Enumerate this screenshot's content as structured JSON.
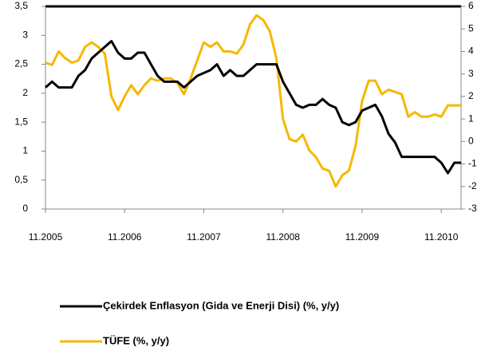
{
  "chart_data": {
    "type": "line",
    "categories": [
      "11.2005",
      null,
      null,
      null,
      null,
      null,
      null,
      null,
      null,
      null,
      null,
      null,
      "11.2006",
      null,
      null,
      null,
      null,
      null,
      null,
      null,
      null,
      null,
      null,
      null,
      "11.2007",
      null,
      null,
      null,
      null,
      null,
      null,
      null,
      null,
      null,
      null,
      null,
      "11.2008",
      null,
      null,
      null,
      null,
      null,
      null,
      null,
      null,
      null,
      null,
      null,
      "11.2009",
      null,
      null,
      null,
      null,
      null,
      null,
      null,
      null,
      null,
      null,
      null,
      "11.2010",
      null,
      null,
      null
    ],
    "series": [
      {
        "name": "Çekirdek Enflasyon (Gida ve Enerji Disi) (%, y/y)",
        "color": "#000000",
        "axis": "y",
        "values": [
          2.1,
          2.2,
          2.1,
          2.1,
          2.1,
          2.3,
          2.4,
          2.6,
          2.7,
          2.8,
          2.9,
          2.7,
          2.6,
          2.6,
          2.7,
          2.7,
          2.5,
          2.3,
          2.2,
          2.2,
          2.2,
          2.1,
          2.2,
          2.3,
          2.35,
          2.4,
          2.5,
          2.3,
          2.4,
          2.3,
          2.3,
          2.4,
          2.5,
          2.5,
          2.5,
          2.5,
          2.2,
          2.0,
          1.8,
          1.75,
          1.8,
          1.8,
          1.9,
          1.8,
          1.75,
          1.5,
          1.45,
          1.5,
          1.7,
          1.75,
          1.8,
          1.6,
          1.3,
          1.15,
          0.9,
          0.9,
          0.9,
          0.9,
          0.9,
          0.9,
          0.8,
          0.62,
          0.8,
          0.8
        ]
      },
      {
        "name": "TÜFE (%, y/y)",
        "color": "#f5b800",
        "axis": "y2",
        "values": [
          3.5,
          3.4,
          4.0,
          3.7,
          3.5,
          3.6,
          4.2,
          4.4,
          4.2,
          3.9,
          2.0,
          1.4,
          2.0,
          2.5,
          2.1,
          2.5,
          2.8,
          2.7,
          2.8,
          2.8,
          2.6,
          2.1,
          2.8,
          3.6,
          4.4,
          4.2,
          4.4,
          4.0,
          4.0,
          3.9,
          4.3,
          5.2,
          5.6,
          5.4,
          4.9,
          3.7,
          1.0,
          0.1,
          0.0,
          0.3,
          -0.4,
          -0.7,
          -1.2,
          -1.3,
          -2.0,
          -1.5,
          -1.3,
          -0.2,
          1.8,
          2.7,
          2.7,
          2.1,
          2.3,
          2.2,
          2.1,
          1.1,
          1.3,
          1.1,
          1.1,
          1.2,
          1.1,
          1.6,
          1.6,
          1.6
        ]
      }
    ],
    "ylim": [
      0,
      3.5
    ],
    "yticks": [
      0,
      {
        "value": 0.5,
        "label": "0,5"
      },
      1,
      {
        "value": 1.5,
        "label": "1,5"
      },
      2,
      {
        "value": 2.5,
        "label": "2,5"
      },
      3,
      {
        "value": 3.5,
        "label": "3,5"
      }
    ],
    "y2lim": [
      -3,
      6
    ],
    "y2ticks": [
      -3,
      -2,
      -1,
      0,
      1,
      2,
      3,
      4,
      5,
      6
    ],
    "legend": "bottom"
  }
}
